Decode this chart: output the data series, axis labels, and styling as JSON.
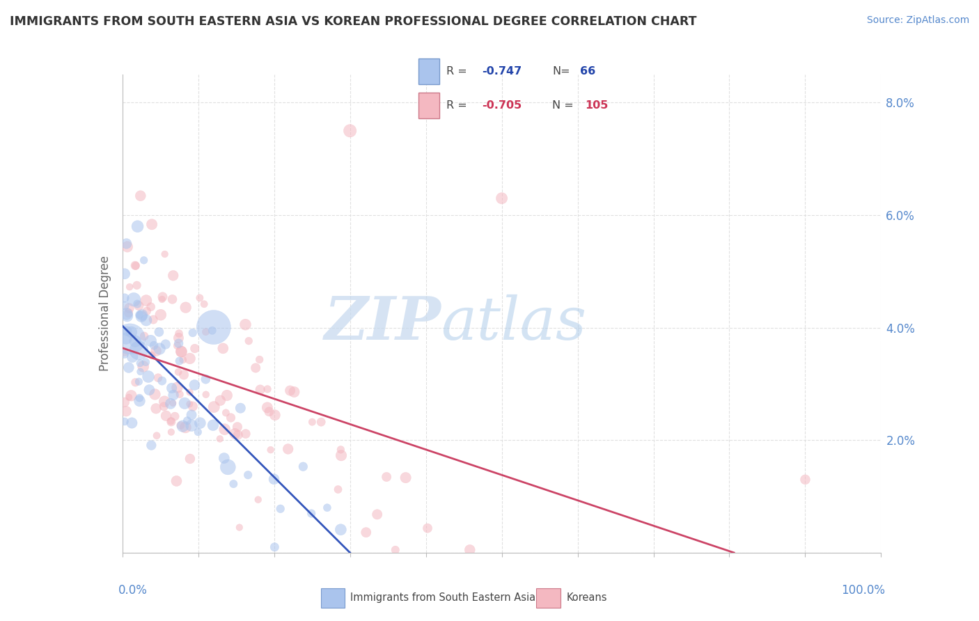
{
  "title": "IMMIGRANTS FROM SOUTH EASTERN ASIA VS KOREAN PROFESSIONAL DEGREE CORRELATION CHART",
  "source": "Source: ZipAtlas.com",
  "ylabel": "Professional Degree",
  "legend1_r": "-0.747",
  "legend1_n": "66",
  "legend2_r": "-0.705",
  "legend2_n": "105",
  "blue_color": "#aac4ed",
  "pink_color": "#f4b8c1",
  "blue_line_color": "#3355bb",
  "pink_line_color": "#cc4466",
  "watermark_zip": "ZIP",
  "watermark_atlas": "atlas",
  "blue_intercept": 4.5,
  "blue_slope": -0.088,
  "pink_intercept": 4.1,
  "pink_slope": -0.042,
  "xmin": 0,
  "xmax": 100,
  "ymin": 0,
  "ymax": 8.5
}
